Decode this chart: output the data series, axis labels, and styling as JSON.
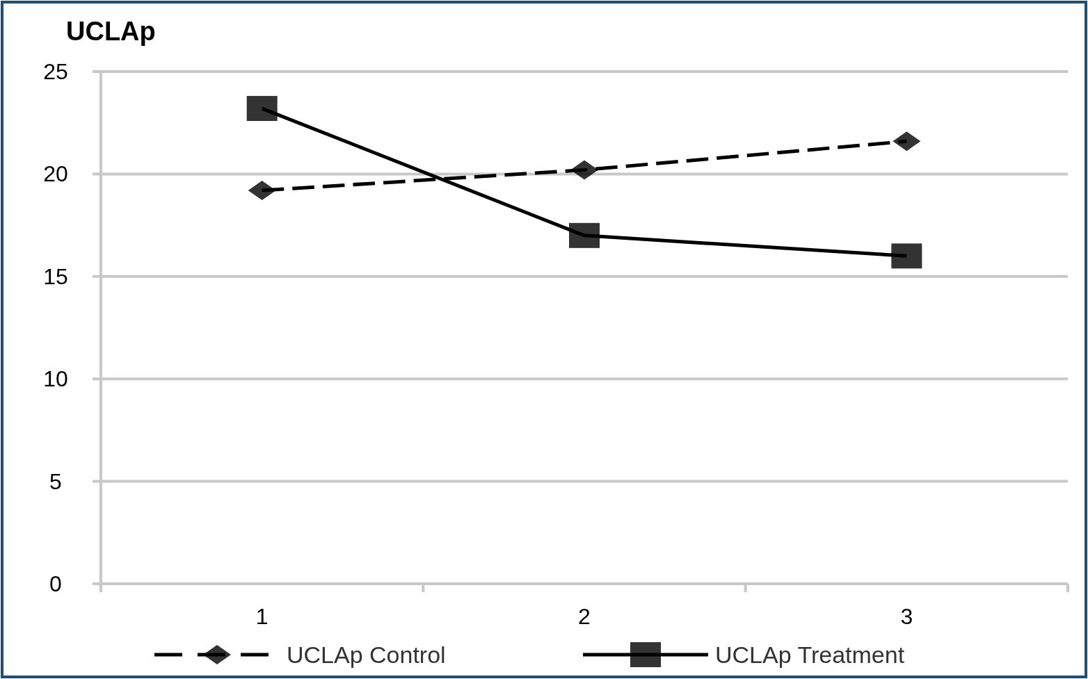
{
  "chart_data": {
    "type": "line",
    "title": "UCLAp",
    "categories": [
      "1",
      "2",
      "3"
    ],
    "series": [
      {
        "name": "UCLAp Control",
        "color": "#000000",
        "values": [
          19.2,
          20.2,
          21.6
        ],
        "marker": "diamond",
        "line_style": "dashed"
      },
      {
        "name": "UCLAp Treatment",
        "color": "#000000",
        "values": [
          23.2,
          17.0,
          16.0
        ],
        "marker": "square",
        "line_style": "solid"
      }
    ],
    "ylim": [
      0,
      25
    ],
    "yticks": [
      0,
      5,
      10,
      15,
      20,
      25
    ],
    "grid": "y",
    "legend": "bottom"
  }
}
